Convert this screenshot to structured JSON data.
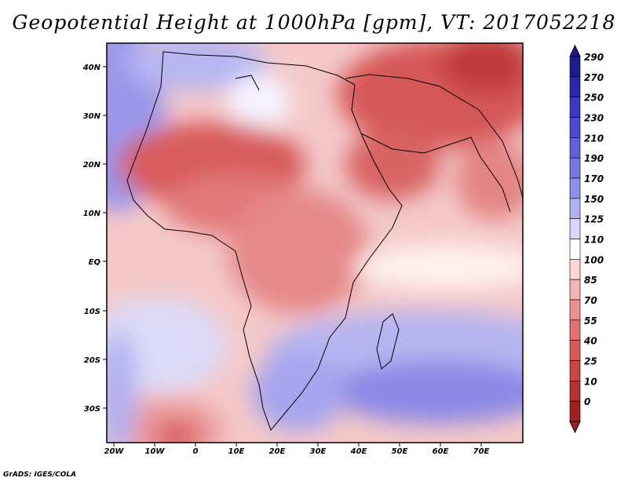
{
  "title": "Geopotential Height at 1000hPa [gpm], VT: 2017052218",
  "credit": "GrADS: IGES/COLA",
  "longitude_labels": [
    "20W",
    "10W",
    "0",
    "10E",
    "20E",
    "30E",
    "40E",
    "50E",
    "60E",
    "70E"
  ],
  "latitude_labels": [
    "40N",
    "30N",
    "20N",
    "10N",
    "EQ",
    "10S",
    "20S",
    "30S"
  ],
  "colorbar": {
    "levels": [
      "290",
      "270",
      "250",
      "230",
      "210",
      "190",
      "170",
      "150",
      "125",
      "110",
      "100",
      "85",
      "70",
      "55",
      "40",
      "25",
      "10",
      "0"
    ],
    "colors": [
      "#1d1a8c",
      "#2b27a8",
      "#3b39c0",
      "#4c4ad0",
      "#6060dc",
      "#7676e2",
      "#9090ea",
      "#b0b0f2",
      "#d6d6fa",
      "#ffffff",
      "#fad6d6",
      "#f5b4b4",
      "#ec9090",
      "#e27272",
      "#d65a5a",
      "#c84646",
      "#b43232",
      "#a02020"
    ]
  },
  "chart_data": {
    "type": "heatmap",
    "title": "Geopotential Height at 1000hPa [gpm], VT: 2017052218",
    "variable": "Geopotential Height at 1000hPa",
    "units": "gpm",
    "valid_time": "2017052218",
    "lon_range": [
      -22,
      80
    ],
    "lat_range": [
      -37,
      45
    ],
    "colorbar_levels": [
      0,
      10,
      25,
      40,
      55,
      70,
      85,
      100,
      110,
      125,
      150,
      170,
      190,
      210,
      230,
      250,
      270,
      290
    ]
  }
}
